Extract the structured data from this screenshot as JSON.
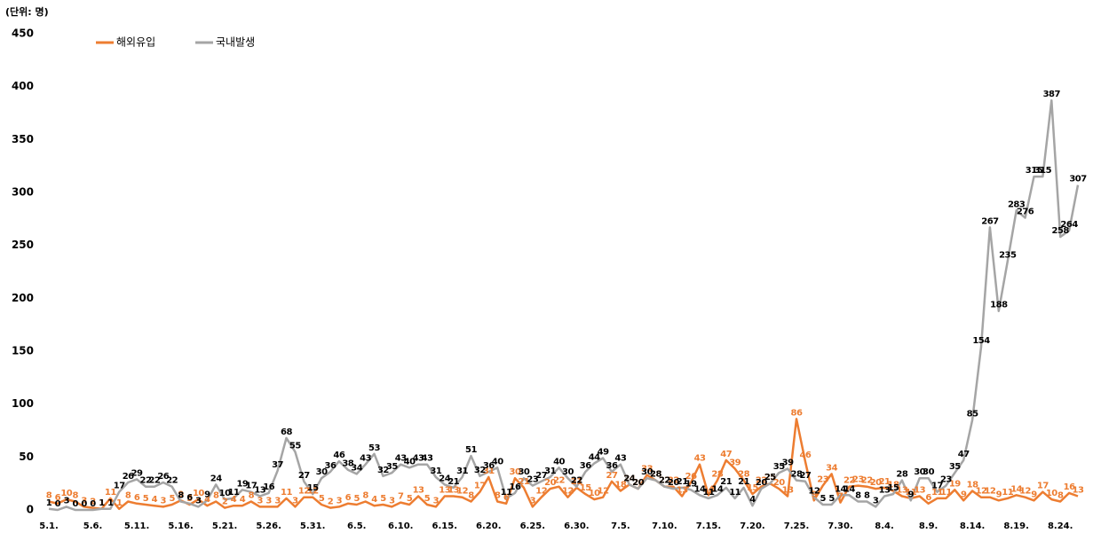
{
  "chart_data": {
    "type": "line",
    "unit_label": "(단위: 명)",
    "categories": [
      "5.1.",
      null,
      null,
      null,
      null,
      "5.6.",
      null,
      null,
      null,
      null,
      "5.11.",
      null,
      null,
      null,
      null,
      "5.16.",
      null,
      null,
      null,
      null,
      "5.21.",
      null,
      null,
      null,
      null,
      "5.26.",
      null,
      null,
      null,
      null,
      "5.31.",
      null,
      null,
      null,
      null,
      "6.5.",
      null,
      null,
      null,
      null,
      "6.10.",
      null,
      null,
      null,
      null,
      "6.15.",
      null,
      null,
      null,
      null,
      "6.20.",
      null,
      null,
      null,
      null,
      "6.25.",
      null,
      null,
      null,
      null,
      "6.30.",
      null,
      null,
      null,
      null,
      "7.5.",
      null,
      null,
      null,
      null,
      "7.10.",
      null,
      null,
      null,
      null,
      "7.15.",
      null,
      null,
      null,
      null,
      "7.20.",
      null,
      null,
      null,
      null,
      "7.25.",
      null,
      null,
      null,
      null,
      "7.30.",
      null,
      null,
      null,
      null,
      "8.4.",
      null,
      null,
      null,
      null,
      "8.9.",
      null,
      null,
      null,
      null,
      "8.14.",
      null,
      null,
      null,
      null,
      "8.19.",
      null,
      null,
      null,
      null,
      "8.24.",
      null,
      null
    ],
    "series": [
      {
        "name": "해외유입",
        "color": "#ed7d31",
        "label_color": "#ed7d31",
        "values": [
          8,
          6,
          10,
          8,
          3,
          2,
          1,
          11,
          1,
          8,
          6,
          5,
          4,
          3,
          5,
          9,
          5,
          10,
          4,
          8,
          2,
          4,
          4,
          8,
          3,
          3,
          3,
          11,
          3,
          12,
          12,
          5,
          2,
          3,
          6,
          5,
          8,
          4,
          5,
          3,
          7,
          5,
          13,
          5,
          3,
          13,
          13,
          12,
          8,
          17,
          31,
          8,
          6,
          30,
          21,
          3,
          12,
          20,
          22,
          12,
          21,
          15,
          10,
          12,
          27,
          18,
          24,
          20,
          33,
          28,
          22,
          22,
          13,
          26,
          43,
          14,
          28,
          47,
          39,
          28,
          15,
          22,
          25,
          20,
          13,
          86,
          46,
          9,
          23,
          34,
          7,
          22,
          23,
          22,
          20,
          21,
          18,
          13,
          11,
          13,
          6,
          11,
          11,
          19,
          9,
          18,
          12,
          12,
          9,
          11,
          14,
          12,
          9,
          17,
          10,
          8,
          16,
          13
        ]
      },
      {
        "name": "국내발생",
        "color": "#a5a5a5",
        "label_color": "#000000",
        "values": [
          1,
          0,
          3,
          0,
          0,
          0,
          1,
          1,
          17,
          26,
          29,
          22,
          22,
          26,
          22,
          8,
          6,
          3,
          9,
          24,
          10,
          11,
          19,
          17,
          13,
          16,
          37,
          68,
          55,
          27,
          15,
          30,
          36,
          46,
          38,
          34,
          43,
          53,
          32,
          35,
          43,
          40,
          43,
          43,
          31,
          24,
          21,
          31,
          51,
          32,
          36,
          40,
          11,
          16,
          30,
          23,
          27,
          31,
          40,
          30,
          22,
          36,
          44,
          49,
          36,
          43,
          24,
          20,
          30,
          28,
          22,
          20,
          21,
          19,
          14,
          11,
          14,
          21,
          11,
          21,
          4,
          20,
          25,
          35,
          39,
          28,
          27,
          12,
          5,
          5,
          14,
          14,
          8,
          8,
          3,
          13,
          15,
          28,
          9,
          30,
          30,
          17,
          23,
          35,
          47,
          85,
          154,
          267,
          188,
          235,
          283,
          276,
          315,
          315,
          387,
          258,
          264,
          307
        ]
      }
    ],
    "ylim": [
      0,
      450
    ],
    "yticks": [
      0,
      50,
      100,
      150,
      200,
      250,
      300,
      350,
      400,
      450
    ],
    "grid": false,
    "legend": "top"
  }
}
